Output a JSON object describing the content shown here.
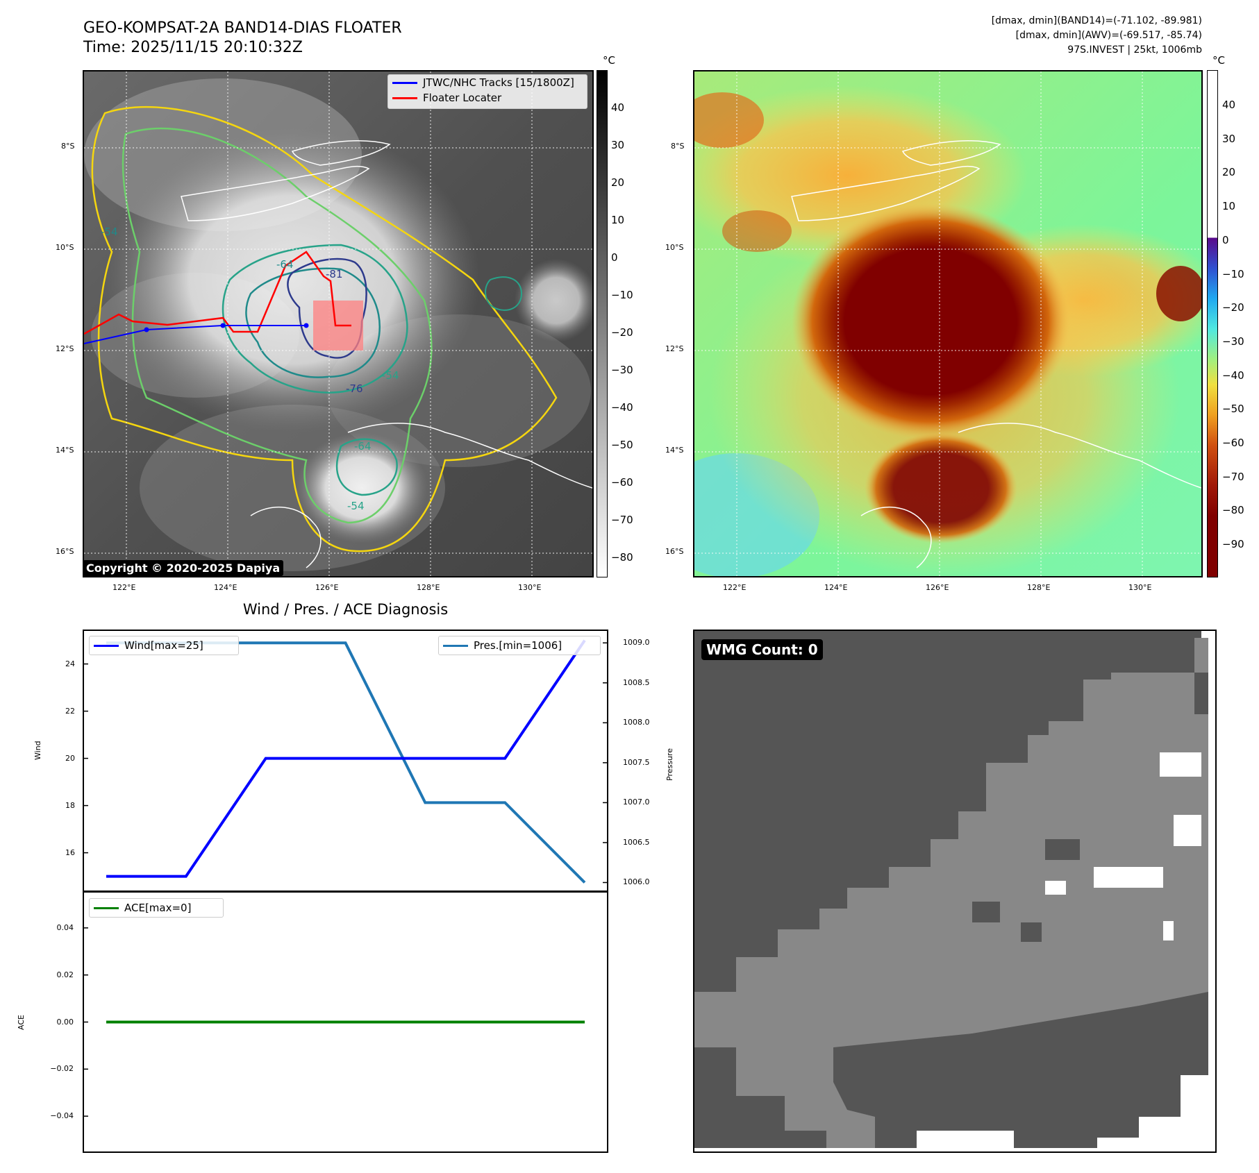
{
  "header": {
    "title_line1": "GEO-KOMPSAT-2A BAND14-DIAS FLOATER",
    "title_line2": "Time: 2025/11/15 20:10:32Z",
    "info_line1": "[dmax, dmin](BAND14)=(-71.102, -89.981)",
    "info_line2": "[dmax, dmin](AWV)=(-69.517, -85.74)",
    "info_line3": "97S.INVEST | 25kt, 1006mb"
  },
  "map_left": {
    "copyright": "Copyright © 2020-2025 Dapiya",
    "legend": [
      {
        "label": "JTWC/NHC Tracks [15/1800Z]",
        "color": "#0000ff",
        "style": "line-with-dots"
      },
      {
        "label": "Floater Locater",
        "color": "#ff0000",
        "style": "line"
      }
    ],
    "contour_labels": [
      "-54",
      "-64",
      "-76",
      "-81",
      "-54",
      "-64",
      "-54"
    ],
    "colorbar_unit": "°C",
    "colorbar_ticks": [
      "40",
      "30",
      "20",
      "10",
      "0",
      "−10",
      "−20",
      "−30",
      "−40",
      "−50",
      "−60",
      "−70",
      "−80"
    ],
    "lat_labels": [
      "8°S",
      "10°S",
      "12°S",
      "14°S",
      "16°S"
    ],
    "lon_labels": [
      "122°E",
      "124°E",
      "126°E",
      "128°E",
      "130°E"
    ]
  },
  "map_right": {
    "colorbar_unit": "°C",
    "colorbar_ticks": [
      "40",
      "30",
      "20",
      "10",
      "0",
      "−10",
      "−20",
      "−30",
      "−40",
      "−50",
      "−60",
      "−70",
      "−80",
      "−90"
    ],
    "lat_labels": [
      "8°S",
      "10°S",
      "12°S",
      "14°S",
      "16°S"
    ],
    "lon_labels": [
      "122°E",
      "124°E",
      "126°E",
      "128°E",
      "130°E"
    ]
  },
  "diagnosis": {
    "title": "Wind / Pres. / ACE Diagnosis",
    "wind_ylabel": "Wind",
    "pressure_ylabel": "Pressure",
    "ace_ylabel": "ACE",
    "wind_ticks": [
      "24",
      "22",
      "20",
      "18",
      "16"
    ],
    "pressure_ticks": [
      "1009.0",
      "1008.5",
      "1008.0",
      "1007.5",
      "1007.0",
      "1006.5",
      "1006.0"
    ],
    "ace_ticks": [
      "0.04",
      "0.02",
      "0.00",
      "−0.02",
      "−0.04"
    ],
    "legend_wind": "Wind[max=25]",
    "legend_pres": "Pres.[min=1006]",
    "legend_ace": "ACE[max=0]"
  },
  "wmg": {
    "label": "WMG Count: 0"
  },
  "chart_data": [
    {
      "type": "line",
      "title": "Wind / Pres. / ACE Diagnosis",
      "ylabel": "Wind",
      "ylim": [
        14.4,
        25.4
      ],
      "series": [
        {
          "name": "Wind[max=25]",
          "color": "#0000ff",
          "x": [
            0,
            1,
            2,
            3,
            4,
            5,
            6
          ],
          "values": [
            15,
            15,
            20,
            20,
            20,
            20,
            25
          ]
        }
      ]
    },
    {
      "type": "line",
      "ylabel": "Pressure",
      "ylim": [
        1005.9,
        1009.15
      ],
      "series": [
        {
          "name": "Pres.[min=1006]",
          "color": "#1f77b4",
          "x": [
            0,
            1,
            2,
            3,
            4,
            5,
            6
          ],
          "values": [
            1009,
            1009,
            1009,
            1009,
            1007,
            1007,
            1006
          ]
        }
      ]
    },
    {
      "type": "line",
      "ylabel": "ACE",
      "ylim": [
        -0.055,
        0.055
      ],
      "series": [
        {
          "name": "ACE[max=0]",
          "color": "#008000",
          "x": [
            0,
            1,
            2,
            3,
            4,
            5,
            6
          ],
          "values": [
            0,
            0,
            0,
            0,
            0,
            0,
            0
          ]
        }
      ]
    }
  ]
}
